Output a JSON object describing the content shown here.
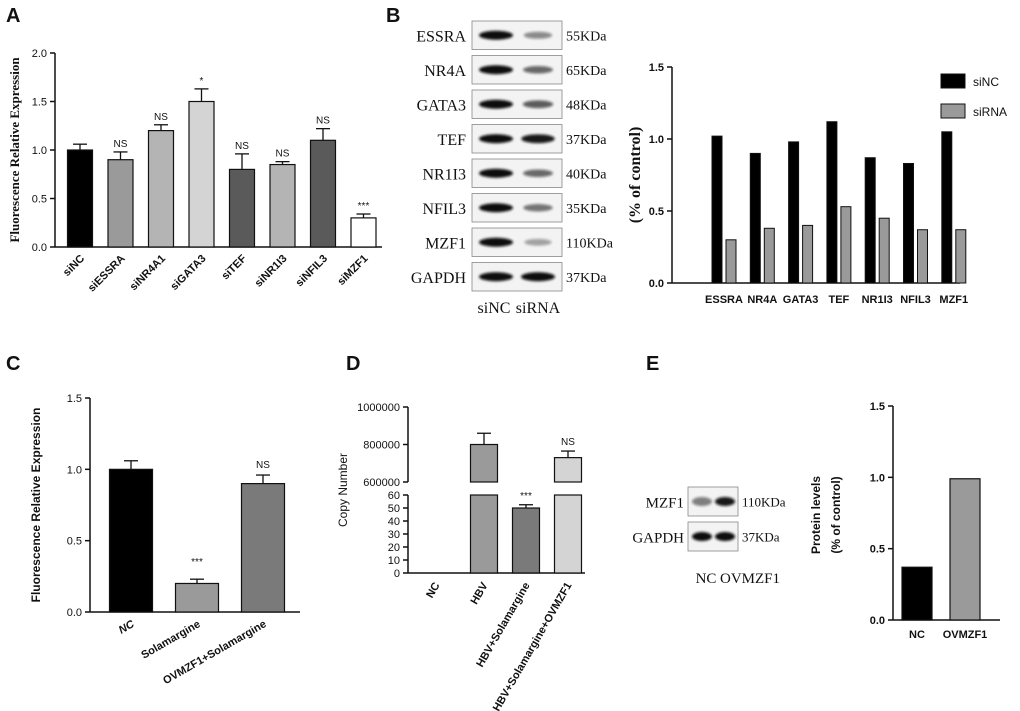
{
  "panels": {
    "A": "A",
    "B": "B",
    "C": "C",
    "D": "D",
    "E": "E"
  },
  "colors": {
    "black": "#000000",
    "gray_dark": "#5a5a5a",
    "gray_mid": "#9a9a9a",
    "gray_light": "#d4d4d4"
  },
  "chart_data": [
    {
      "panel": "A",
      "type": "bar",
      "ylabel": "Fluorescence Relative Expression",
      "ylim": [
        0,
        2.0
      ],
      "yticks": [
        "0.0",
        "0.5",
        "1.0",
        "1.5",
        "2.0"
      ],
      "categories": [
        "siNC",
        "siESSRA",
        "siNR4A1",
        "siGATA3",
        "siTEF",
        "siNR1I3",
        "siNFIL3",
        "siMZF1"
      ],
      "values": [
        1.0,
        0.9,
        1.2,
        1.5,
        0.8,
        0.85,
        1.1,
        0.3
      ],
      "errors": [
        0.06,
        0.08,
        0.06,
        0.13,
        0.16,
        0.03,
        0.12,
        0.04
      ],
      "annotations": [
        "",
        "NS",
        "NS",
        "*",
        "NS",
        "NS",
        "NS",
        "***"
      ],
      "colors": [
        "#000000",
        "#9a9a9a",
        "#b4b4b4",
        "#d4d4d4",
        "#5a5a5a",
        "#b4b4b4",
        "#5a5a5a",
        "#ffffff"
      ]
    },
    {
      "panel": "B",
      "type": "bar",
      "ylabel": "(% of control)",
      "ylim": [
        0,
        1.5
      ],
      "yticks": [
        "0.0",
        "0.5",
        "1.0",
        "1.5"
      ],
      "categories": [
        "ESSRA",
        "NR4A",
        "GATA3",
        "TEF",
        "NR1I3",
        "NFIL3",
        "MZF1"
      ],
      "series": [
        {
          "name": "siNC",
          "values": [
            1.02,
            0.9,
            0.98,
            1.12,
            0.87,
            0.83,
            1.05
          ]
        },
        {
          "name": "siRNA",
          "values": [
            0.3,
            0.38,
            0.4,
            0.53,
            0.45,
            0.37,
            0.37
          ]
        }
      ],
      "legend": "top-right"
    },
    {
      "panel": "C",
      "type": "bar",
      "ylabel": "Fluorescence Relative Expression",
      "ylim": [
        0,
        1.5
      ],
      "yticks": [
        "0.0",
        "0.5",
        "1.0",
        "1.5"
      ],
      "categories": [
        "NC",
        "Solamargine",
        "OVMZF1+Solamargine"
      ],
      "values": [
        1.0,
        0.2,
        0.9
      ],
      "errors": [
        0.06,
        0.03,
        0.06
      ],
      "annotations": [
        "",
        "***",
        "NS"
      ],
      "colors": [
        "#000000",
        "#9a9a9a",
        "#7a7a7a"
      ]
    },
    {
      "panel": "D",
      "type": "bar",
      "ylabel": "Copy  Number",
      "broken_axis": {
        "lower": [
          0,
          60
        ],
        "upper": [
          600000,
          1000000
        ]
      },
      "yticks_lower": [
        "0",
        "10",
        "20",
        "30",
        "40",
        "50",
        "60"
      ],
      "yticks_upper": [
        "600000",
        "800000",
        "1000000"
      ],
      "categories": [
        "NC",
        "HBV",
        "HBV+Solamargine",
        "HBV+Solamargine+OVMZF1"
      ],
      "values": [
        0,
        800000,
        50,
        730000
      ],
      "errors": [
        0,
        60000,
        2.5,
        35000
      ],
      "annotations": [
        "",
        "",
        "***",
        "NS"
      ],
      "colors": [
        "#ffffff",
        "#9a9a9a",
        "#7a7a7a",
        "#d4d4d4"
      ]
    },
    {
      "panel": "E",
      "type": "bar",
      "ylabel": "Protein levels\n(% of control)",
      "ylim": [
        0,
        1.5
      ],
      "yticks": [
        "0.0",
        "0.5",
        "1.0",
        "1.5"
      ],
      "categories": [
        "NC",
        "OVMZF1"
      ],
      "values": [
        0.37,
        0.99
      ],
      "colors": [
        "#000000",
        "#9a9a9a"
      ]
    }
  ],
  "blots": {
    "B": {
      "rows": [
        {
          "protein": "ESSRA",
          "size": "55KDa",
          "nc": 1.0,
          "si": 0.45
        },
        {
          "protein": "NR4A",
          "size": "65KDa",
          "nc": 1.0,
          "si": 0.6
        },
        {
          "protein": "GATA3",
          "size": "48KDa",
          "nc": 1.0,
          "si": 0.65
        },
        {
          "protein": "TEF",
          "size": "37KDa",
          "nc": 1.0,
          "si": 0.95
        },
        {
          "protein": "NR1I3",
          "size": "40KDa",
          "nc": 1.0,
          "si": 0.6
        },
        {
          "protein": "NFIL3",
          "size": "35KDa",
          "nc": 1.0,
          "si": 0.55
        },
        {
          "protein": "MZF1",
          "size": "110KDa",
          "nc": 1.0,
          "si": 0.35
        },
        {
          "protein": "GAPDH",
          "size": "37KDa",
          "nc": 1.0,
          "si": 1.0
        }
      ],
      "lanes": [
        "siNC",
        "siRNA"
      ]
    },
    "E": {
      "rows": [
        {
          "protein": "MZF1",
          "size": "110KDa",
          "nc": 0.5,
          "si": 0.95
        },
        {
          "protein": "GAPDH",
          "size": "37KDa",
          "nc": 1.0,
          "si": 1.0
        }
      ],
      "lanes": [
        "NC",
        "OVMZF1"
      ]
    }
  }
}
